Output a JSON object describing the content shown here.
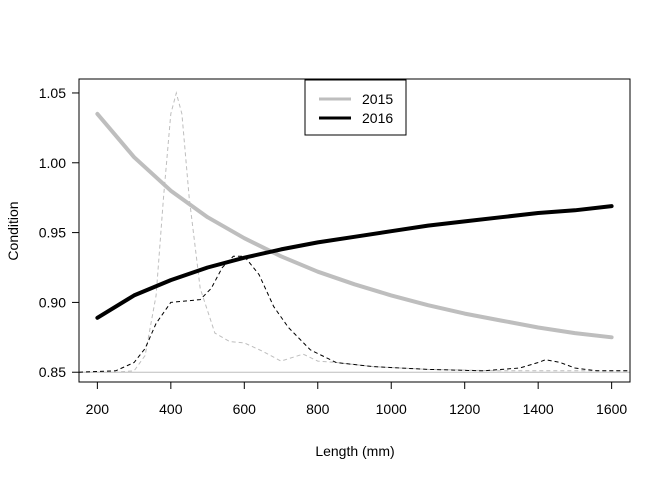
{
  "chart_data": {
    "type": "line",
    "xlabel": "Length (mm)",
    "ylabel": "Condition",
    "xlim": [
      150,
      1650
    ],
    "ylim": [
      0.843,
      1.06
    ],
    "x_ticks": [
      200,
      400,
      600,
      800,
      1000,
      1200,
      1400,
      1600
    ],
    "y_ticks": [
      0.85,
      0.9,
      0.95,
      1.0,
      1.05
    ],
    "y_tick_labels": [
      "0.85",
      "0.90",
      "0.95",
      "1.00",
      "1.05"
    ],
    "legend": {
      "placement": "top-center"
    },
    "series": [
      {
        "name": "2015",
        "color": "#bebebe",
        "style": "thick-solid",
        "x": [
          200,
          300,
          400,
          500,
          600,
          700,
          800,
          900,
          1000,
          1100,
          1200,
          1300,
          1400,
          1500,
          1600
        ],
        "y": [
          1.035,
          1.004,
          0.98,
          0.961,
          0.946,
          0.933,
          0.922,
          0.913,
          0.905,
          0.898,
          0.892,
          0.887,
          0.882,
          0.878,
          0.875
        ]
      },
      {
        "name": "2016",
        "color": "#000000",
        "style": "thick-solid",
        "x": [
          200,
          300,
          400,
          500,
          600,
          700,
          800,
          900,
          1000,
          1100,
          1200,
          1300,
          1400,
          1500,
          1600
        ],
        "y": [
          0.889,
          0.905,
          0.916,
          0.925,
          0.932,
          0.938,
          0.943,
          0.947,
          0.951,
          0.955,
          0.958,
          0.961,
          0.964,
          0.966,
          0.969
        ]
      }
    ],
    "density_curves": [
      {
        "series": "2015",
        "color": "#bebebe",
        "style": "dashed",
        "x": [
          150,
          250,
          300,
          330,
          360,
          380,
          400,
          415,
          430,
          450,
          480,
          520,
          560,
          600,
          650,
          700,
          760,
          800,
          850,
          950,
          1100,
          1300,
          1500,
          1650
        ],
        "y": [
          0.85,
          0.85,
          0.851,
          0.862,
          0.905,
          0.975,
          1.035,
          1.05,
          1.035,
          0.975,
          0.91,
          0.878,
          0.872,
          0.871,
          0.865,
          0.858,
          0.863,
          0.858,
          0.857,
          0.854,
          0.852,
          0.851,
          0.851,
          0.851
        ]
      },
      {
        "series": "2016",
        "color": "#000000",
        "style": "dashed",
        "x": [
          150,
          250,
          300,
          330,
          360,
          400,
          440,
          480,
          510,
          540,
          570,
          600,
          640,
          680,
          720,
          780,
          850,
          950,
          1100,
          1250,
          1350,
          1400,
          1420,
          1460,
          1500,
          1560,
          1650
        ],
        "y": [
          0.85,
          0.851,
          0.857,
          0.867,
          0.885,
          0.9,
          0.901,
          0.902,
          0.91,
          0.925,
          0.933,
          0.933,
          0.92,
          0.897,
          0.882,
          0.866,
          0.857,
          0.854,
          0.852,
          0.851,
          0.853,
          0.857,
          0.859,
          0.857,
          0.853,
          0.851,
          0.851
        ]
      }
    ],
    "baseline_y": 0.85,
    "baseline_color": "#bebebe"
  }
}
